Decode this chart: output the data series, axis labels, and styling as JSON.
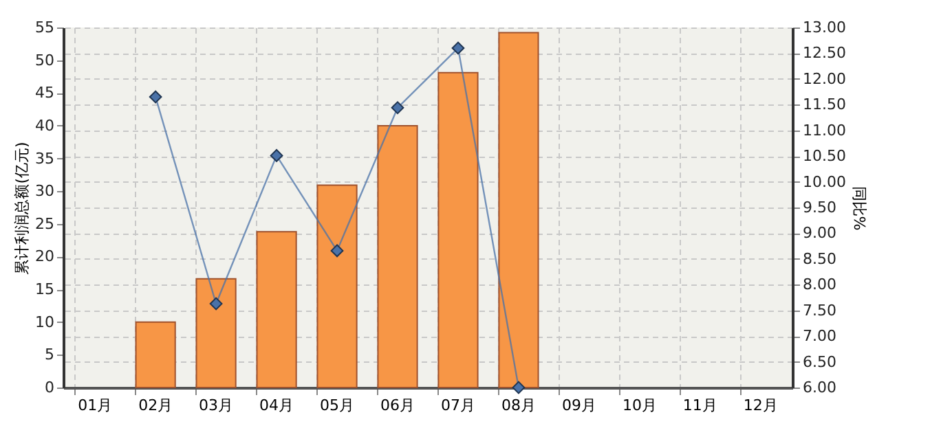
{
  "chart_data": {
    "type": "bar",
    "ylabel": "累计利润总额(亿元)",
    "y2label": "同比%",
    "categories": [
      "01月",
      "02月",
      "03月",
      "04月",
      "05月",
      "06月",
      "07月",
      "08月",
      "09月",
      "10月",
      "11月",
      "12月"
    ],
    "series": [
      {
        "color": "#f79646",
        "values": [
          null,
          10,
          16.6,
          23.8,
          30.9,
          40.0,
          48.1,
          54.2,
          null,
          null,
          null,
          null
        ]
      },
      {
        "type": "line",
        "axis": "y2",
        "color": "#4a72a8",
        "marker": "diamond",
        "values": [
          null,
          11.65,
          7.63,
          10.51,
          8.66,
          11.44,
          12.6,
          6.0,
          null,
          null,
          null,
          null
        ]
      }
    ],
    "ylim": [
      0,
      55
    ],
    "yticks": [
      0,
      5,
      10,
      15,
      20,
      25,
      30,
      35,
      40,
      45,
      50,
      55
    ],
    "y2lim": [
      6,
      13
    ],
    "y2ticks": [
      {
        "value": 6,
        "label": "6.00"
      },
      {
        "value": 6.5,
        "label": "6.50"
      },
      {
        "value": 7,
        "label": "7.00"
      },
      {
        "value": 7.5,
        "label": "7.50"
      },
      {
        "value": 8,
        "label": "8.00"
      },
      {
        "value": 8.5,
        "label": "8.50"
      },
      {
        "value": 9,
        "label": "9.00"
      },
      {
        "value": 9.5,
        "label": "9.50"
      },
      {
        "value": 10,
        "label": "10.00"
      },
      {
        "value": 10.5,
        "label": "10.50"
      },
      {
        "value": 11,
        "label": "11.00"
      },
      {
        "value": 11.5,
        "label": "11.50"
      },
      {
        "value": 12,
        "label": "12.00"
      },
      {
        "value": 12.5,
        "label": "12.50"
      },
      {
        "value": 13,
        "label": "13.00"
      }
    ],
    "grid": true
  }
}
